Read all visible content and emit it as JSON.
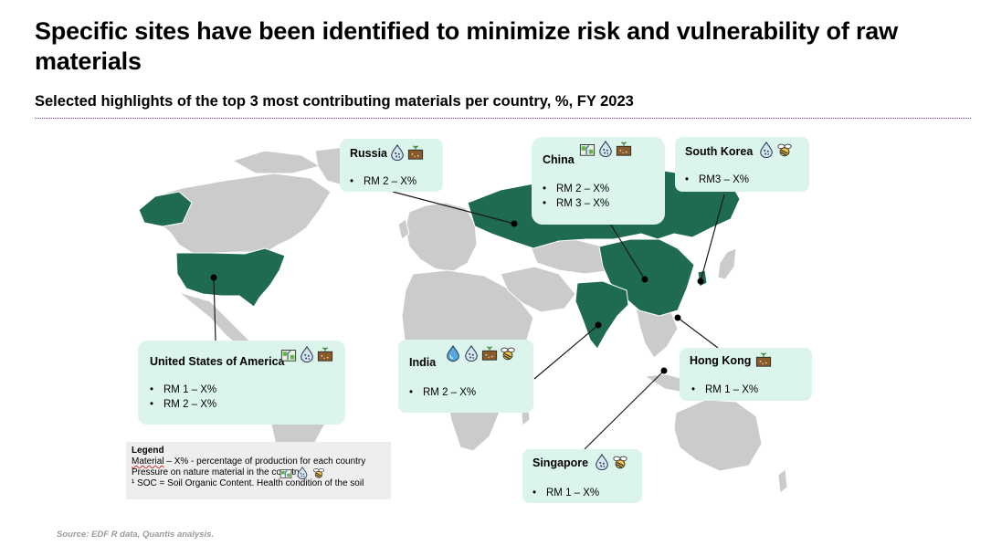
{
  "title": "Specific sites have been identified to minimize risk and vulnerability of raw materials",
  "subtitle": "Selected highlights of the top 3 most contributing materials per country, %, FY 2023",
  "colors": {
    "highlight": "#1e6b52",
    "land": "#cbcbcb",
    "card": "#dcf5ec",
    "divider": "#6b4a8a"
  },
  "countries": {
    "russia": {
      "name": "Russia",
      "icons": [
        "water-drop-icon",
        "soil-icon"
      ],
      "items": [
        "RM 2 – X%"
      ]
    },
    "china": {
      "name": "China",
      "icons": [
        "land-use-icon",
        "water-drop-icon",
        "soil-icon"
      ],
      "items": [
        "RM 2 – X%",
        "RM 3 – X%"
      ]
    },
    "south_korea": {
      "name": "South Korea",
      "icons": [
        "water-drop-icon",
        "bee-icon"
      ],
      "items": [
        "RM3 – X%"
      ]
    },
    "usa": {
      "name": "United States of America",
      "icons": [
        "land-use-icon",
        "water-drop-icon",
        "soil-icon"
      ],
      "items": [
        "RM 1 – X%",
        "RM 2 – X%"
      ]
    },
    "india": {
      "name": "India",
      "icons": [
        "water-icon",
        "water-drop-icon",
        "soil-icon",
        "bee-icon"
      ],
      "items": [
        "RM 2 – X%"
      ]
    },
    "hong_kong": {
      "name": "Hong Kong",
      "icons": [
        "soil-icon"
      ],
      "items": [
        "RM 1 – X%"
      ]
    },
    "singapore": {
      "name": "Singapore",
      "icons": [
        "water-drop-icon",
        "bee-icon"
      ],
      "items": [
        "RM 1 – X%"
      ]
    }
  },
  "legend": {
    "title": "Legend",
    "line1_word": "Material",
    "line1_rest": " – X% - percentage of production for each country",
    "line2": "Pressure on nature material in the country",
    "line3": "¹ SOC = Soil Organic Content.  Health condition of the soil",
    "icons": [
      "land-use-icon",
      "water-drop-icon",
      "bee-icon"
    ]
  },
  "source": "Source: EDF R data, Quantis analysis."
}
